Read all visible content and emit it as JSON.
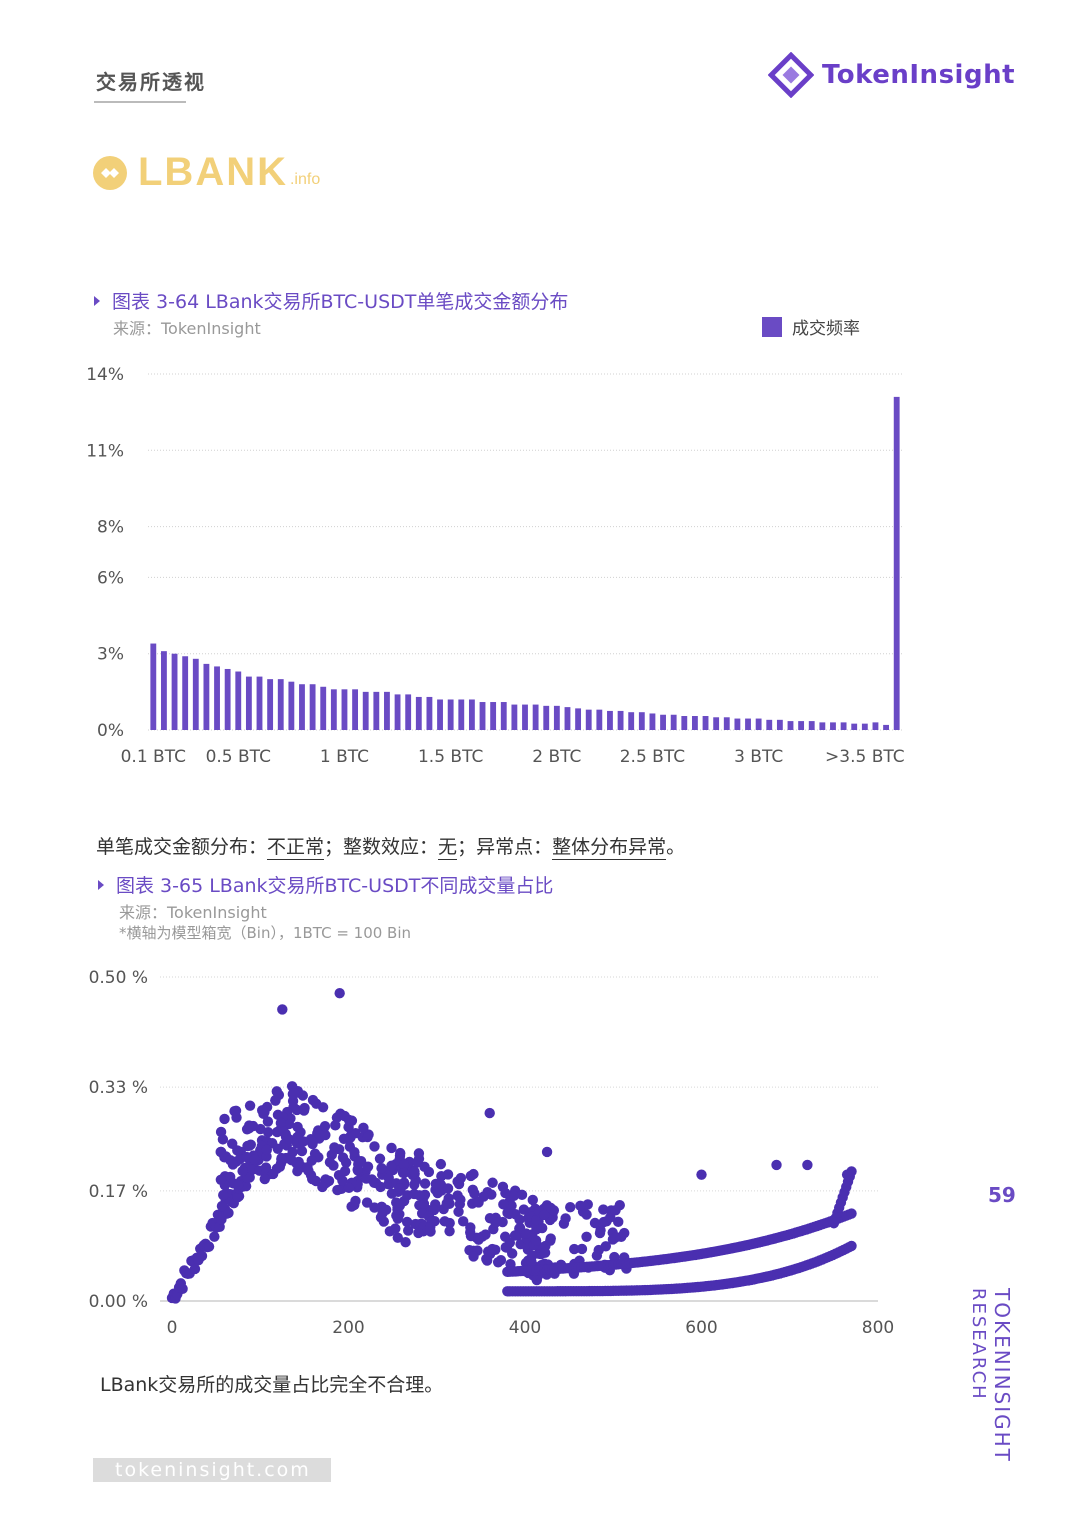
{
  "header": {
    "section_title": "交易所透视",
    "brand_name": "TokenInsight"
  },
  "exchange_logo": {
    "name": "LBANK",
    "suffix": ".info"
  },
  "figure1": {
    "title": "图表 3-64 LBank交易所BTC-USDT单笔成交金额分布",
    "source": "来源：TokenInsight",
    "legend": "成交频率"
  },
  "verdict": {
    "label1": "单笔成交金额分布：",
    "value1": "不正常",
    "label2": "；整数效应：",
    "value2": "无",
    "label3": "；异常点：",
    "value3": "整体分布异常",
    "end": "。"
  },
  "figure2": {
    "title": "图表 3-65 LBank交易所BTC-USDT不同成交量占比",
    "source": "来源：TokenInsight",
    "note": "*横轴为模型箱宽（Bin），1BTC = 100 Bin"
  },
  "conclusion": "LBank交易所的成交量占比完全不合理。",
  "footer": {
    "url": "tokeninsight.com",
    "page_number": "59",
    "side_line1": "TOKENINSIGHT",
    "side_line2": "RESEARCH"
  },
  "colors": {
    "accent": "#6a4bc4",
    "bar": "#6a4bc4",
    "dot": "#4a2fb0",
    "lbank": "#f2d079"
  },
  "chart_data": [
    {
      "type": "bar",
      "ylim": [
        0,
        14
      ],
      "yticks": [
        0,
        3,
        6,
        8,
        11,
        14
      ],
      "ytick_labels": [
        "0%",
        "3%",
        "6%",
        "8%",
        "11%",
        "14%"
      ],
      "xtick_labels": [
        "0.1 BTC",
        "0.5 BTC",
        "1 BTC",
        "1.5 BTC",
        "2 BTC",
        "2.5 BTC",
        "3 BTC",
        ">3.5 BTC"
      ],
      "xtick_positions": [
        0,
        8,
        18,
        28,
        38,
        47,
        57,
        67
      ],
      "series": [
        {
          "name": "成交频率",
          "values": [
            3.4,
            3.1,
            3.0,
            2.9,
            2.8,
            2.6,
            2.5,
            2.4,
            2.3,
            2.1,
            2.1,
            2.0,
            2.0,
            1.9,
            1.8,
            1.8,
            1.7,
            1.6,
            1.6,
            1.6,
            1.5,
            1.5,
            1.5,
            1.4,
            1.4,
            1.3,
            1.3,
            1.2,
            1.2,
            1.2,
            1.2,
            1.1,
            1.1,
            1.1,
            1.0,
            1.0,
            1.0,
            0.95,
            0.95,
            0.9,
            0.85,
            0.8,
            0.8,
            0.75,
            0.75,
            0.7,
            0.7,
            0.65,
            0.6,
            0.6,
            0.55,
            0.55,
            0.55,
            0.5,
            0.5,
            0.45,
            0.45,
            0.45,
            0.4,
            0.4,
            0.35,
            0.35,
            0.35,
            0.3,
            0.3,
            0.3,
            0.25,
            0.25,
            0.3,
            0.2,
            13.1
          ]
        }
      ]
    },
    {
      "type": "scatter",
      "xlim": [
        0,
        800
      ],
      "ylim": [
        0,
        0.5
      ],
      "xticks": [
        0,
        200,
        400,
        600,
        800
      ],
      "yticks": [
        0,
        0.17,
        0.33,
        0.5
      ],
      "ytick_labels": [
        "0.00 %",
        "0.17 %",
        "0.33 %",
        "0.50 %"
      ],
      "points_description": "bins 0-770 with peak near bin 100-200 then decline and rising curves toward 770",
      "highlighted_points": [
        [
          125,
          0.45
        ],
        [
          190,
          0.475
        ],
        [
          360,
          0.29
        ],
        [
          425,
          0.23
        ],
        [
          600,
          0.195
        ],
        [
          685,
          0.21
        ],
        [
          720,
          0.21
        ],
        [
          765,
          0.195
        ]
      ]
    }
  ]
}
